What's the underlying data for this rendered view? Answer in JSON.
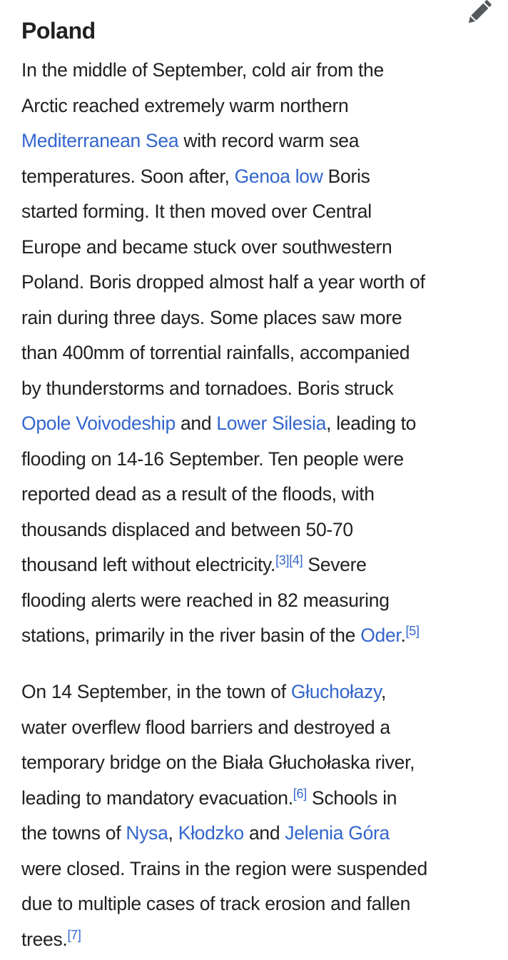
{
  "section": {
    "title": "Poland",
    "edit_icon": "pencil-icon"
  },
  "colors": {
    "text": "#202122",
    "link": "#3366cc",
    "icon": "#54595d"
  },
  "paragraphs": [
    {
      "lines": [
        [
          {
            "t": "In the middle of September, cold air from the"
          }
        ],
        [
          {
            "t": "Arctic reached extremely warm northern"
          }
        ],
        [
          {
            "t": "Mediterranean Sea",
            "type": "link"
          },
          {
            "t": " with record warm sea"
          }
        ],
        [
          {
            "t": "temperatures. Soon after, "
          },
          {
            "t": "Genoa low",
            "type": "link"
          },
          {
            "t": " Boris"
          }
        ],
        [
          {
            "t": "started forming. It then moved over Central"
          }
        ],
        [
          {
            "t": "Europe and became stuck over southwestern"
          }
        ],
        [
          {
            "t": "Poland. Boris dropped almost half a year worth of"
          }
        ],
        [
          {
            "t": "rain during three days. Some places saw more"
          }
        ],
        [
          {
            "t": "than 400mm of torrential rainfalls, accompanied"
          }
        ],
        [
          {
            "t": "by thunderstorms and tornadoes. Boris struck"
          }
        ],
        [
          {
            "t": "Opole Voivodeship",
            "type": "link"
          },
          {
            "t": " and "
          },
          {
            "t": "Lower Silesia",
            "type": "link"
          },
          {
            "t": ", leading to"
          }
        ],
        [
          {
            "t": "flooding on 14-16 September. Ten people were"
          }
        ],
        [
          {
            "t": "reported dead as a result of the floods, with"
          }
        ],
        [
          {
            "t": "thousands displaced and between 50-70"
          }
        ],
        [
          {
            "t": "thousand left without electricity."
          },
          {
            "t": "[3]",
            "type": "ref"
          },
          {
            "t": "[4]",
            "type": "ref"
          },
          {
            "t": " Severe"
          }
        ],
        [
          {
            "t": "flooding alerts were reached in 82 measuring"
          }
        ],
        [
          {
            "t": "stations, primarily in the river basin of the "
          },
          {
            "t": "Oder",
            "type": "link"
          },
          {
            "t": "."
          },
          {
            "t": "[5]",
            "type": "ref"
          }
        ]
      ]
    },
    {
      "lines": [
        [
          {
            "t": "On 14 September, in the town of "
          },
          {
            "t": "Głuchołazy",
            "type": "link"
          },
          {
            "t": ","
          }
        ],
        [
          {
            "t": "water overflew flood barriers and destroyed a"
          }
        ],
        [
          {
            "t": "temporary bridge on the Biała Głuchołaska river,"
          }
        ],
        [
          {
            "t": "leading to mandatory evacuation."
          },
          {
            "t": "[6]",
            "type": "ref"
          },
          {
            "t": " Schools in"
          }
        ],
        [
          {
            "t": "the towns of "
          },
          {
            "t": "Nysa",
            "type": "link"
          },
          {
            "t": ", "
          },
          {
            "t": "Kłodzko",
            "type": "link"
          },
          {
            "t": " and "
          },
          {
            "t": "Jelenia Góra",
            "type": "link"
          }
        ],
        [
          {
            "t": "were closed. Trains in the region were suspended"
          }
        ],
        [
          {
            "t": "due to multiple cases of track erosion and fallen"
          }
        ],
        [
          {
            "t": "trees."
          },
          {
            "t": "[7]",
            "type": "ref"
          }
        ]
      ]
    }
  ]
}
